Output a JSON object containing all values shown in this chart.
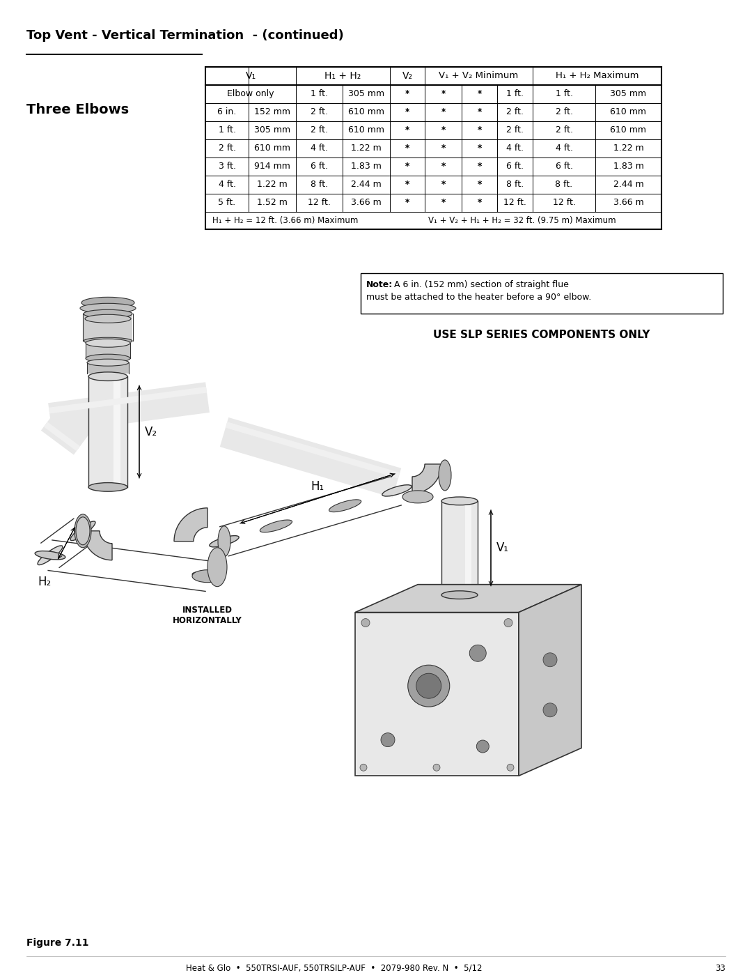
{
  "page_title": "Top Vent - Vertical Termination  - (continued)",
  "section_label": "Three Elbows",
  "table_data": [
    [
      "Elbow only",
      "",
      "1 ft.",
      "305 mm",
      "*",
      "*",
      "*",
      "1 ft.",
      "305 mm"
    ],
    [
      "6 in.",
      "152 mm",
      "2 ft.",
      "610 mm",
      "*",
      "*",
      "*",
      "2 ft.",
      "610 mm"
    ],
    [
      "1 ft.",
      "305 mm",
      "2 ft.",
      "610 mm",
      "*",
      "*",
      "*",
      "2 ft.",
      "610 mm"
    ],
    [
      "2 ft.",
      "610 mm",
      "4 ft.",
      "1.22 m",
      "*",
      "*",
      "*",
      "4 ft.",
      "1.22 m"
    ],
    [
      "3 ft.",
      "914 mm",
      "6 ft.",
      "1.83 m",
      "*",
      "*",
      "*",
      "6 ft.",
      "1.83 m"
    ],
    [
      "4 ft.",
      "1.22 m",
      "8 ft.",
      "2.44 m",
      "*",
      "*",
      "*",
      "8 ft.",
      "2.44 m"
    ],
    [
      "5 ft.",
      "1.52 m",
      "12 ft.",
      "3.66 m",
      "*",
      "*",
      "*",
      "12 ft.",
      "3.66 m"
    ]
  ],
  "footer_note1": "H₁ + H₂ = 12 ft. (3.66 m) Maximum",
  "footer_note2": "V₁ + V₂ + H₁ + H₂ = 32 ft. (9.75 m) Maximum",
  "note_bold": "Note:",
  "note_rest": " A 6 in. (152 mm) section of straight flue\nmust be attached to the heater before a 90° elbow.",
  "use_slp_text": "USE SLP SERIES COMPONENTS ONLY",
  "figure_label": "Figure 7.11",
  "footer_text": "Heat & Glo  •  550TRSI-AUF, 550TRSILP-AUF  •  2079-980 Rev. N  •  5/12",
  "page_number": "33",
  "bg_color": "#ffffff"
}
